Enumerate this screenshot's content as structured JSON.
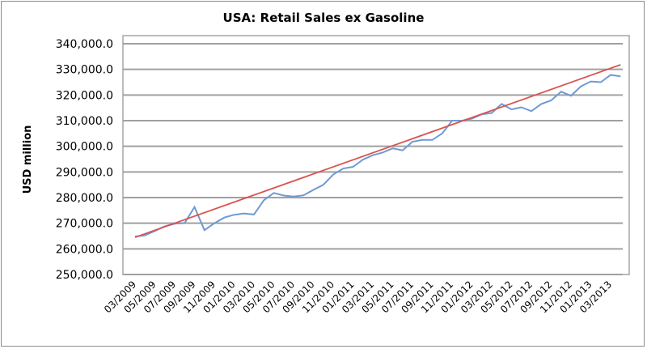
{
  "chart_data": {
    "type": "line",
    "title": "USA: Retail Sales ex Gasoline",
    "xlabel": "",
    "ylabel": "USD million",
    "ylim": [
      250000,
      340000
    ],
    "yticks": [
      "250,000.0",
      "260,000.0",
      "270,000.0",
      "280,000.0",
      "290,000.0",
      "300,000.0",
      "310,000.0",
      "320,000.0",
      "330,000.0",
      "340,000.0"
    ],
    "xtick_labels": [
      "03/2009",
      "05/2009",
      "07/2009",
      "09/2009",
      "11/2009",
      "01/2010",
      "03/2010",
      "05/2010",
      "07/2010",
      "09/2010",
      "11/2010",
      "01/2011",
      "03/2011",
      "05/2011",
      "07/2011",
      "09/2011",
      "11/2011",
      "01/2012",
      "03/2012",
      "05/2012",
      "07/2012",
      "09/2012",
      "11/2012",
      "01/2013",
      "03/2013"
    ],
    "grid": true,
    "legend": "none",
    "series": [
      {
        "name": "Retail Sales ex Gasoline",
        "color": "#6f9ad3",
        "values": [
          264800,
          265300,
          267000,
          268800,
          269800,
          270100,
          276300,
          267300,
          270000,
          272200,
          273300,
          273800,
          273400,
          279000,
          281800,
          280800,
          280400,
          280900,
          283000,
          285000,
          289000,
          291300,
          292000,
          294800,
          296500,
          297600,
          299200,
          298400,
          301800,
          302500,
          302500,
          305000,
          310000,
          310000,
          310800,
          312500,
          313000,
          316500,
          314400,
          315200,
          313700,
          316500,
          317900,
          321300,
          319700,
          323400,
          325300,
          325000,
          327800,
          327300
        ]
      },
      {
        "name": "Linear trend",
        "color": "#d9534f",
        "type": "trend",
        "start": 264500,
        "end": 331800
      }
    ],
    "last_value_note": "",
    "extra_last": 329200
  }
}
